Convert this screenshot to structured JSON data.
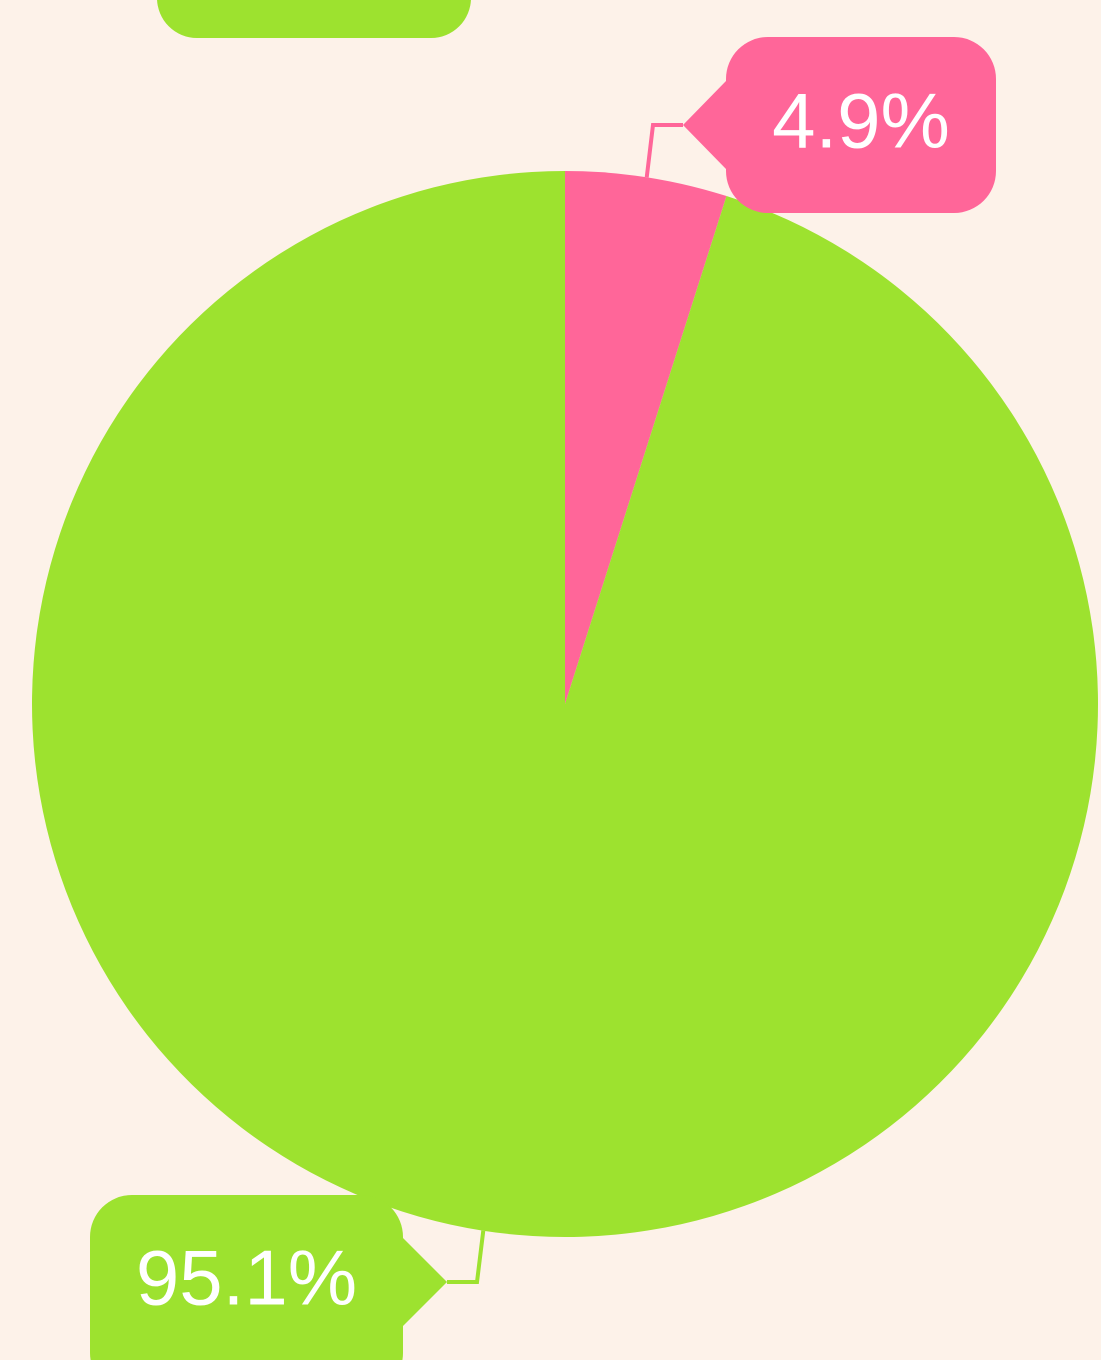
{
  "chart_data": {
    "type": "pie",
    "values": [
      4.9,
      95.1
    ],
    "value_labels": [
      "4.9%",
      "95.1%"
    ],
    "colors": [
      "#ff6699",
      "#9de22f"
    ]
  }
}
